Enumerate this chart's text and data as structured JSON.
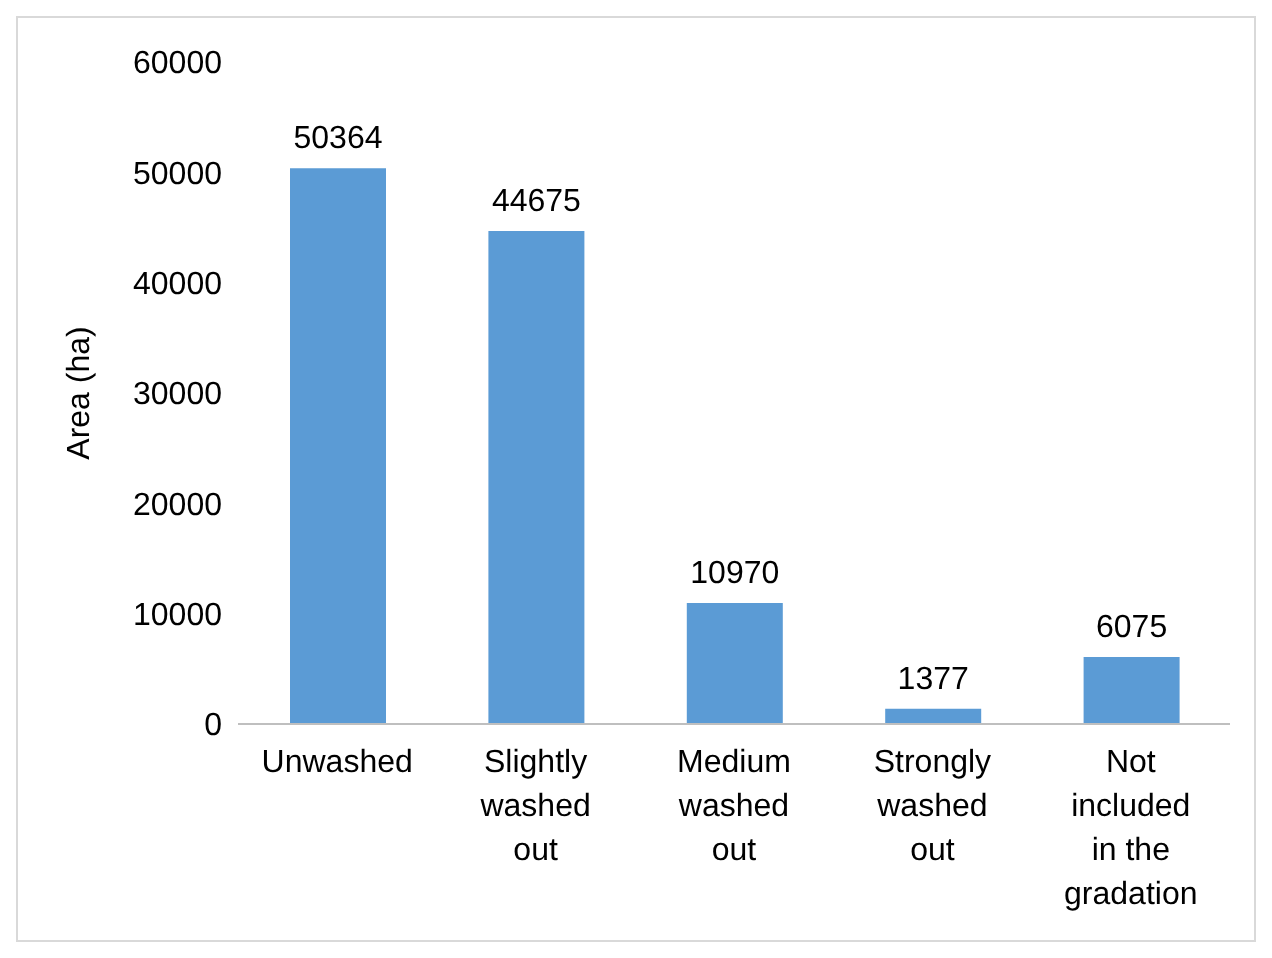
{
  "chart_data": {
    "type": "bar",
    "ylabel": "Area (ha)",
    "categories": [
      "Unwashed",
      "Slightly washed out",
      "Medium washed out",
      "Strongly washed out",
      "Not included in the gradation"
    ],
    "values": [
      50364,
      44675,
      10970,
      1377,
      6075
    ],
    "color": "#5b9bd5",
    "ylim": [
      0,
      60000
    ],
    "yticks": [
      0,
      10000,
      20000,
      30000,
      40000,
      50000,
      60000
    ],
    "grid": false,
    "data_labels": true
  }
}
